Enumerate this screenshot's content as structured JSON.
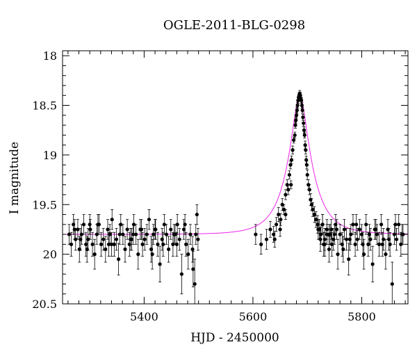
{
  "chart_data": {
    "type": "scatter",
    "title": "OGLE-2011-BLG-0298",
    "xlabel": "HJD - 2450000",
    "ylabel": "I magnitude",
    "xlim": [
      5250,
      5885
    ],
    "ylim": [
      20.5,
      17.95
    ],
    "y_inverted": true,
    "x_ticks": [
      5400,
      5600,
      5800
    ],
    "x_tick_labels": [
      "5400",
      "5600",
      "5800"
    ],
    "y_ticks": [
      18,
      18.5,
      19,
      19.5,
      20,
      20.5
    ],
    "y_tick_labels": [
      "18",
      "18.5",
      "19",
      "19.5",
      "20",
      "20.5"
    ],
    "grid": false,
    "legend": "none",
    "colors": {
      "points": "#000000",
      "model": "#ee22ee"
    },
    "model_curve": {
      "baseline": 19.8,
      "peak_time": 5686,
      "peak_magnitude": 18.4,
      "timescale_days": 45
    },
    "series": [
      {
        "x": [
          5262,
          5266,
          5270,
          5274,
          5278,
          5281,
          5285,
          5289,
          5293,
          5297,
          5301,
          5305,
          5309,
          5313,
          5317,
          5321,
          5325,
          5329,
          5333,
          5337,
          5341,
          5345,
          5349,
          5353,
          5357,
          5361,
          5365,
          5369,
          5373,
          5377,
          5381,
          5385,
          5389,
          5393,
          5397,
          5401,
          5405,
          5409,
          5413,
          5417,
          5421,
          5425,
          5429,
          5433,
          5437,
          5441,
          5445,
          5449,
          5453,
          5457,
          5461,
          5465,
          5469,
          5473,
          5477,
          5481,
          5485,
          5489,
          5493,
          5497,
          5272,
          5283,
          5295,
          5315,
          5335,
          5355,
          5375,
          5395,
          5415,
          5435,
          5455,
          5475,
          5490,
          5499,
          5300,
          5340,
          5380,
          5420,
          5460,
          5495
        ],
        "y": [
          19.8,
          19.9,
          19.7,
          19.85,
          19.75,
          19.95,
          19.8,
          19.7,
          19.9,
          19.85,
          19.75,
          19.9,
          20.0,
          19.8,
          19.7,
          19.9,
          19.85,
          19.95,
          19.75,
          19.8,
          19.65,
          19.9,
          19.85,
          20.05,
          19.7,
          19.8,
          19.95,
          19.75,
          19.9,
          19.85,
          19.7,
          19.8,
          20.0,
          19.75,
          19.9,
          19.85,
          19.8,
          19.65,
          19.95,
          19.8,
          19.75,
          19.9,
          20.1,
          19.85,
          19.7,
          19.8,
          19.95,
          19.75,
          19.9,
          19.8,
          19.7,
          19.85,
          20.2,
          19.75,
          19.9,
          20.0,
          19.8,
          19.95,
          20.3,
          19.6,
          19.75,
          19.85,
          19.95,
          19.7,
          19.9,
          19.8,
          19.85,
          19.75,
          20.0,
          19.9,
          19.8,
          19.7,
          20.15,
          19.85,
          19.7,
          19.9,
          19.8,
          19.75,
          19.9,
          19.8
        ],
        "errors": [
          0.1,
          0.12,
          0.1,
          0.11,
          0.1,
          0.13,
          0.1,
          0.1,
          0.12,
          0.11,
          0.1,
          0.12,
          0.15,
          0.1,
          0.1,
          0.12,
          0.11,
          0.13,
          0.1,
          0.1,
          0.1,
          0.12,
          0.11,
          0.16,
          0.1,
          0.1,
          0.13,
          0.1,
          0.12,
          0.11,
          0.1,
          0.1,
          0.15,
          0.1,
          0.12,
          0.11,
          0.1,
          0.1,
          0.13,
          0.1,
          0.1,
          0.12,
          0.18,
          0.11,
          0.1,
          0.1,
          0.13,
          0.1,
          0.12,
          0.1,
          0.1,
          0.11,
          0.2,
          0.1,
          0.12,
          0.15,
          0.1,
          0.13,
          0.25,
          0.1,
          0.1,
          0.11,
          0.13,
          0.1,
          0.12,
          0.1,
          0.11,
          0.1,
          0.15,
          0.12,
          0.1,
          0.1,
          0.18,
          0.11,
          0.1,
          0.12,
          0.1,
          0.1,
          0.12,
          0.1
        ]
      },
      {
        "x": [
          5605,
          5615,
          5625,
          5632,
          5638,
          5643,
          5647,
          5651,
          5654,
          5657,
          5660,
          5663,
          5665,
          5667,
          5669,
          5671,
          5673,
          5675,
          5677,
          5678,
          5679,
          5680,
          5681,
          5682,
          5683,
          5684,
          5685,
          5686,
          5687,
          5688,
          5689,
          5690,
          5691,
          5692,
          5693,
          5694,
          5695,
          5696,
          5697,
          5698,
          5699,
          5700,
          5702,
          5704,
          5706,
          5708,
          5710,
          5713,
          5716,
          5719,
          5722,
          5725,
          5728,
          5732,
          5736,
          5740,
          5745,
          5750,
          5640,
          5650,
          5660,
          5670
        ],
        "y": [
          19.8,
          19.9,
          19.85,
          19.75,
          19.8,
          19.7,
          19.6,
          19.65,
          19.5,
          19.55,
          19.4,
          19.3,
          19.35,
          19.2,
          19.1,
          19.05,
          18.95,
          18.85,
          18.8,
          18.7,
          18.65,
          18.6,
          18.55,
          18.5,
          18.45,
          18.42,
          18.4,
          18.38,
          18.4,
          18.43,
          18.45,
          18.5,
          18.55,
          18.62,
          18.68,
          18.75,
          18.8,
          18.9,
          18.95,
          19.05,
          19.1,
          19.2,
          19.3,
          19.35,
          19.45,
          19.5,
          19.55,
          19.6,
          19.65,
          19.7,
          19.75,
          19.8,
          19.7,
          19.85,
          19.75,
          19.8,
          19.9,
          19.8,
          19.85,
          19.75,
          19.6,
          19.3
        ],
        "errors": [
          0.1,
          0.1,
          0.1,
          0.08,
          0.08,
          0.07,
          0.07,
          0.06,
          0.06,
          0.05,
          0.05,
          0.05,
          0.05,
          0.04,
          0.04,
          0.04,
          0.04,
          0.03,
          0.03,
          0.03,
          0.03,
          0.03,
          0.03,
          0.03,
          0.03,
          0.03,
          0.03,
          0.03,
          0.03,
          0.03,
          0.03,
          0.03,
          0.03,
          0.03,
          0.03,
          0.03,
          0.03,
          0.04,
          0.04,
          0.04,
          0.04,
          0.05,
          0.05,
          0.05,
          0.06,
          0.06,
          0.07,
          0.08,
          0.08,
          0.09,
          0.1,
          0.1,
          0.1,
          0.11,
          0.1,
          0.1,
          0.12,
          0.1,
          0.08,
          0.07,
          0.05,
          0.04
        ]
      },
      {
        "x": [
          5720,
          5724,
          5728,
          5732,
          5736,
          5740,
          5744,
          5748,
          5752,
          5756,
          5760,
          5764,
          5768,
          5772,
          5776,
          5780,
          5784,
          5788,
          5792,
          5796,
          5800,
          5804,
          5808,
          5812,
          5816,
          5820,
          5824,
          5828,
          5832,
          5836,
          5840,
          5844,
          5848,
          5852,
          5856,
          5860,
          5864,
          5868,
          5872,
          5876,
          5730,
          5742,
          5754,
          5766,
          5778,
          5790,
          5802,
          5814,
          5826,
          5838,
          5850,
          5862,
          5874
        ],
        "y": [
          19.75,
          19.85,
          19.7,
          19.9,
          19.8,
          19.95,
          19.75,
          19.85,
          19.7,
          20.0,
          19.8,
          19.9,
          19.75,
          19.85,
          20.05,
          19.8,
          19.7,
          19.9,
          19.85,
          19.75,
          19.8,
          20.0,
          19.7,
          19.9,
          19.85,
          20.1,
          19.75,
          19.8,
          19.9,
          19.7,
          19.85,
          20.0,
          19.75,
          19.9,
          20.3,
          19.8,
          19.85,
          19.7,
          19.9,
          19.8,
          19.9,
          19.8,
          19.75,
          19.95,
          19.85,
          19.7,
          19.9,
          19.8,
          19.75,
          19.9,
          19.85,
          19.7,
          19.8
        ],
        "errors": [
          0.1,
          0.12,
          0.1,
          0.12,
          0.1,
          0.13,
          0.1,
          0.11,
          0.1,
          0.15,
          0.1,
          0.12,
          0.1,
          0.11,
          0.16,
          0.1,
          0.1,
          0.12,
          0.11,
          0.1,
          0.1,
          0.15,
          0.1,
          0.12,
          0.11,
          0.18,
          0.1,
          0.1,
          0.12,
          0.1,
          0.11,
          0.15,
          0.1,
          0.12,
          0.22,
          0.1,
          0.11,
          0.1,
          0.12,
          0.1,
          0.12,
          0.1,
          0.1,
          0.13,
          0.11,
          0.1,
          0.12,
          0.1,
          0.1,
          0.12,
          0.11,
          0.1,
          0.1
        ]
      }
    ]
  }
}
